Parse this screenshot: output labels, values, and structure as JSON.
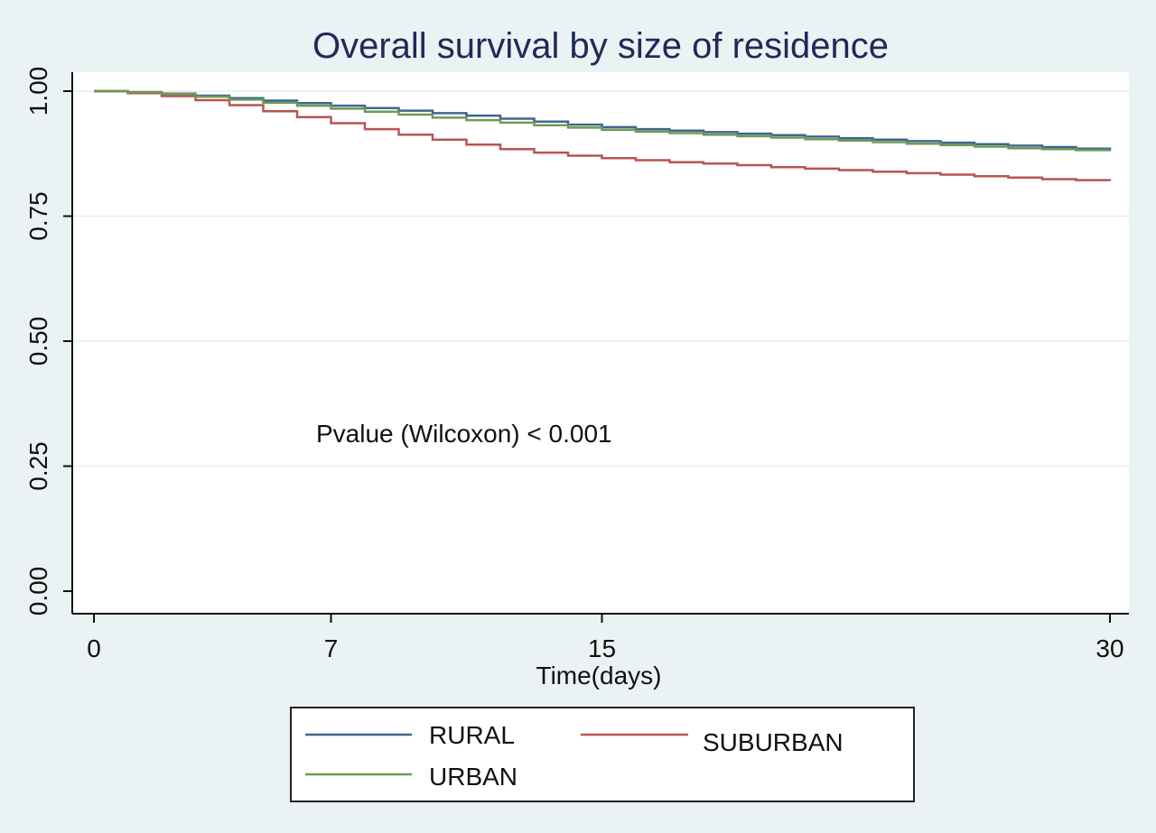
{
  "chart_data": {
    "type": "line",
    "title": "Overall survival by size of residence",
    "xlabel": "Time(days)",
    "ylabel": "",
    "xlim": [
      0,
      30
    ],
    "ylim": [
      0,
      1
    ],
    "x_ticks": [
      0,
      7,
      15,
      30
    ],
    "x_tick_labels": [
      "0",
      "7",
      "15",
      "30"
    ],
    "y_ticks": [
      0,
      0.25,
      0.5,
      0.75,
      1
    ],
    "y_tick_labels": [
      "0.00",
      "0.25",
      "0.50",
      "0.75",
      "1.00"
    ],
    "grid": "horizontal",
    "legend_position": "bottom",
    "annotation": "Pvalue (Wilcoxon) < 0.001",
    "step": true,
    "series": [
      {
        "name": "RURAL",
        "color": "#3d6590",
        "x": [
          0,
          1,
          2,
          3,
          4,
          5,
          6,
          7,
          8,
          9,
          10,
          11,
          12,
          13,
          14,
          15,
          16,
          17,
          18,
          19,
          20,
          21,
          22,
          23,
          24,
          25,
          26,
          27,
          28,
          29,
          30
        ],
        "y": [
          1.0,
          0.998,
          0.995,
          0.991,
          0.986,
          0.981,
          0.976,
          0.971,
          0.966,
          0.961,
          0.956,
          0.951,
          0.945,
          0.939,
          0.933,
          0.928,
          0.924,
          0.921,
          0.918,
          0.915,
          0.912,
          0.909,
          0.906,
          0.903,
          0.9,
          0.897,
          0.894,
          0.891,
          0.888,
          0.885,
          0.882
        ]
      },
      {
        "name": "SUBURBAN",
        "color": "#b85454",
        "x": [
          0,
          1,
          2,
          3,
          4,
          5,
          6,
          7,
          8,
          9,
          10,
          11,
          12,
          13,
          14,
          15,
          16,
          17,
          18,
          19,
          20,
          21,
          22,
          23,
          24,
          25,
          26,
          27,
          28,
          29,
          30
        ],
        "y": [
          1.0,
          0.996,
          0.99,
          0.982,
          0.972,
          0.96,
          0.948,
          0.936,
          0.924,
          0.913,
          0.903,
          0.893,
          0.884,
          0.877,
          0.871,
          0.866,
          0.862,
          0.858,
          0.855,
          0.852,
          0.848,
          0.845,
          0.842,
          0.839,
          0.836,
          0.833,
          0.83,
          0.827,
          0.824,
          0.822,
          0.821
        ]
      },
      {
        "name": "URBAN",
        "color": "#6e9a52",
        "x": [
          0,
          1,
          2,
          3,
          4,
          5,
          6,
          7,
          8,
          9,
          10,
          11,
          12,
          13,
          14,
          15,
          16,
          17,
          18,
          19,
          20,
          21,
          22,
          23,
          24,
          25,
          26,
          27,
          28,
          29,
          30
        ],
        "y": [
          1.0,
          0.998,
          0.994,
          0.989,
          0.983,
          0.977,
          0.971,
          0.965,
          0.959,
          0.953,
          0.947,
          0.942,
          0.937,
          0.932,
          0.927,
          0.923,
          0.919,
          0.916,
          0.913,
          0.91,
          0.907,
          0.904,
          0.901,
          0.898,
          0.895,
          0.892,
          0.889,
          0.886,
          0.884,
          0.882,
          0.88
        ]
      }
    ]
  }
}
